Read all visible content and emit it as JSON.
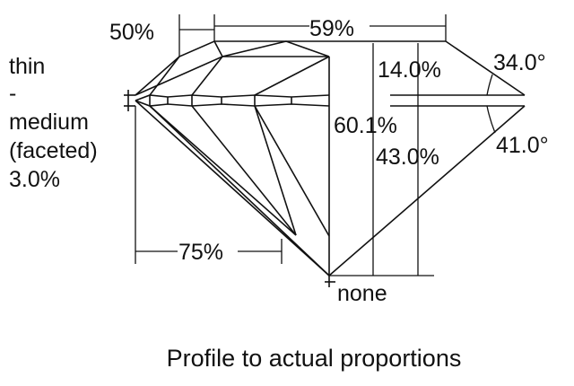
{
  "labels": {
    "star_length": "50%",
    "table": "59%",
    "girdle_thin": "thin",
    "girdle_dash": "-",
    "girdle_medium": "medium",
    "girdle_faceted": "(faceted)",
    "girdle_pct": "3.0%",
    "crown_height": "14.0%",
    "crown_angle": "34.0°",
    "total_depth": "60.1%",
    "pavilion_depth": "43.0%",
    "pavilion_angle": "41.0°",
    "lower_half": "75%",
    "culet": "none"
  },
  "caption": "Profile to actual proportions"
}
